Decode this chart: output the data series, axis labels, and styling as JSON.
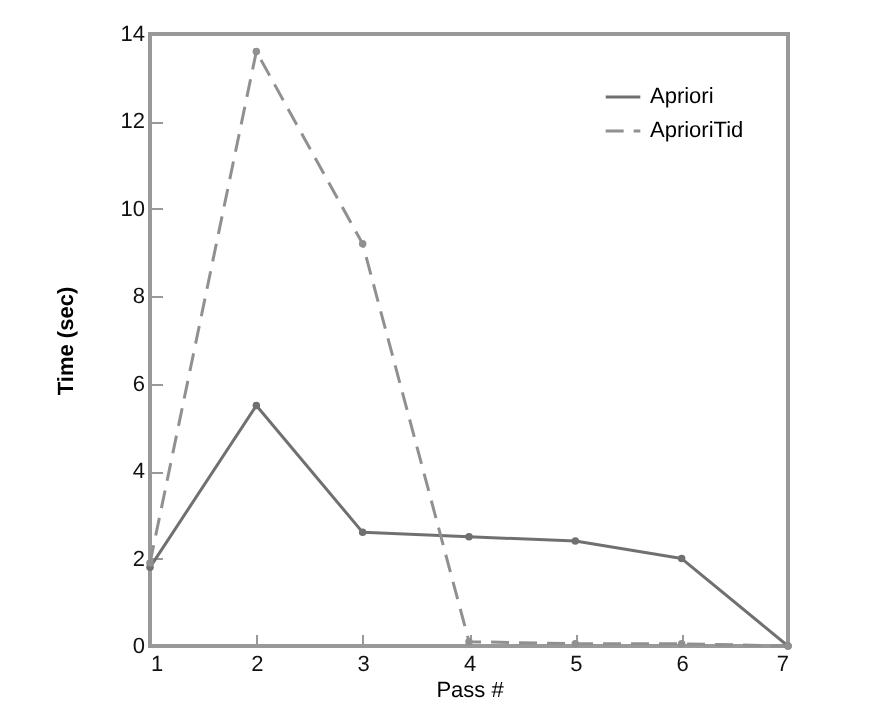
{
  "chart_data": {
    "type": "line",
    "xlabel": "Pass #",
    "ylabel": "Time  (sec)",
    "x": [
      1,
      2,
      3,
      4,
      5,
      6,
      7
    ],
    "xlim": [
      1,
      7
    ],
    "xticks": [
      1,
      2,
      3,
      4,
      5,
      6,
      7
    ],
    "ylim": [
      0,
      14
    ],
    "yticks": [
      0,
      2,
      4,
      6,
      8,
      10,
      12,
      14
    ],
    "grid": false,
    "legend": "top right",
    "marker": "circle",
    "series": [
      {
        "name": "Apriori",
        "color": "#707070",
        "line_style": "solid",
        "values": [
          1.8,
          5.5,
          2.6,
          2.5,
          2.4,
          2.0,
          0
        ]
      },
      {
        "name": "AprioriTid",
        "color": "#909090",
        "line_style": "dashed",
        "values": [
          1.9,
          13.6,
          9.2,
          0.1,
          0.05,
          0.05,
          0
        ]
      }
    ]
  }
}
